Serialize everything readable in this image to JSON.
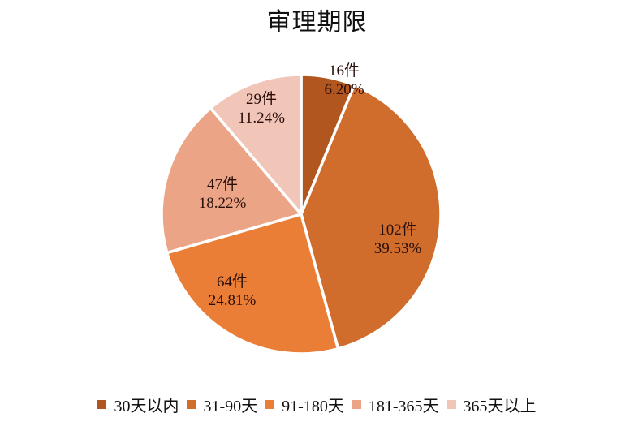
{
  "chart_data": {
    "type": "pie",
    "title": "审理期限",
    "categories": [
      "30天以内",
      "31-90天",
      "91-180天",
      "181-365天",
      "365天以上"
    ],
    "values": [
      16,
      102,
      64,
      47,
      29
    ],
    "percentages": [
      "6.20%",
      "39.53%",
      "24.81%",
      "18.22%",
      "11.24%"
    ],
    "count_labels": [
      "16件",
      "102件",
      "64件",
      "47件",
      "29件"
    ],
    "colors": [
      "#b2561f",
      "#d06d2c",
      "#ea7e37",
      "#eca486",
      "#f1c5b7"
    ],
    "legend_position": "bottom",
    "start_angle": "12 o'clock, clockwise"
  },
  "title": "审理期限",
  "labels": [
    {
      "count": "16件",
      "pct": "6.20%"
    },
    {
      "count": "102件",
      "pct": "39.53%"
    },
    {
      "count": "64件",
      "pct": "24.81%"
    },
    {
      "count": "47件",
      "pct": "18.22%"
    },
    {
      "count": "29件",
      "pct": "11.24%"
    }
  ],
  "legend": [
    {
      "label": "30天以内",
      "color": "#b2561f"
    },
    {
      "label": "31-90天",
      "color": "#d06d2c"
    },
    {
      "label": "91-180天",
      "color": "#ea7e37"
    },
    {
      "label": "181-365天",
      "color": "#eca486"
    },
    {
      "label": "365天以上",
      "color": "#f1c5b7"
    }
  ]
}
